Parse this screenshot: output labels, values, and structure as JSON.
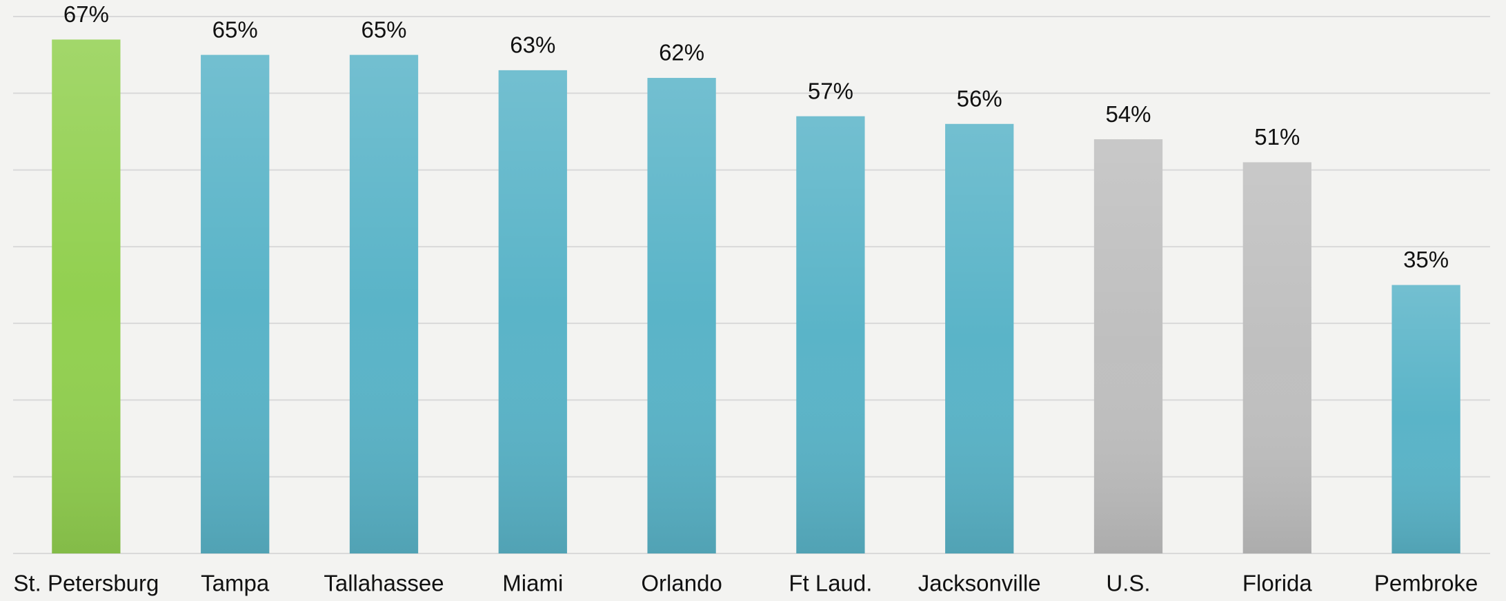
{
  "chart_data": {
    "type": "bar",
    "categories": [
      "St. Petersburg",
      "Tampa",
      "Tallahassee",
      "Miami",
      "Orlando",
      "Ft Laud.",
      "Jacksonville",
      "U.S.",
      "Florida",
      "Pembroke"
    ],
    "values": [
      67,
      65,
      65,
      63,
      62,
      57,
      56,
      54,
      51,
      35
    ],
    "value_labels": [
      "67%",
      "65%",
      "65%",
      "63%",
      "62%",
      "57%",
      "56%",
      "54%",
      "51%",
      "35%"
    ],
    "colors": [
      "#92d050",
      "#5ab4c8",
      "#5ab4c8",
      "#5ab4c8",
      "#5ab4c8",
      "#5ab4c8",
      "#5ab4c8",
      "#bfbfbf",
      "#bfbfbf",
      "#5ab4c8"
    ],
    "ylim": [
      0,
      70
    ],
    "yticks": [
      0,
      10,
      20,
      30,
      40,
      50,
      60,
      70
    ],
    "grid": true
  }
}
